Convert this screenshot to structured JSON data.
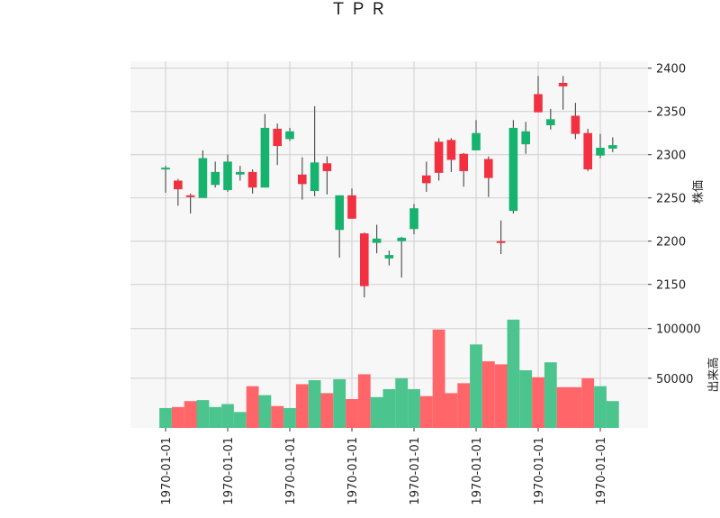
{
  "chart_data": {
    "type": "candlestick",
    "title": "ＴＰＲ",
    "colors": {
      "up": "#16b36e",
      "down": "#f2303f",
      "wick": "#555555",
      "vol_up": "#4bc48e",
      "vol_down": "#ff6569",
      "grid": "#cfcfcf",
      "panel_bg": "#f7f7f7"
    },
    "price_axis": {
      "label": "株価",
      "ylim": [
        2107,
        2408
      ],
      "ticks": [
        2150,
        2200,
        2250,
        2300,
        2350,
        2400
      ]
    },
    "volume_axis": {
      "label": "出来高",
      "ylim": [
        0,
        107000
      ],
      "ticks": [
        50000,
        100000
      ]
    },
    "x_tick_labels": [
      "1970-01-01",
      "1970-01-01",
      "1970-01-01",
      "1970-01-01",
      "1970-01-01",
      "1970-01-01",
      "1970-01-01",
      "1970-01-01"
    ],
    "candles": [
      {
        "open": 2283,
        "high": 2287,
        "low": 2256,
        "close": 2285,
        "volume": 20000
      },
      {
        "open": 2270,
        "high": 2272,
        "low": 2241,
        "close": 2260,
        "volume": 21000
      },
      {
        "open": 2253,
        "high": 2255,
        "low": 2232,
        "close": 2251,
        "volume": 27000
      },
      {
        "open": 2250,
        "high": 2305,
        "low": 2250,
        "close": 2296,
        "volume": 28000
      },
      {
        "open": 2265,
        "high": 2292,
        "low": 2262,
        "close": 2280,
        "volume": 21000
      },
      {
        "open": 2259,
        "high": 2300,
        "low": 2257,
        "close": 2292,
        "volume": 24000
      },
      {
        "open": 2277,
        "high": 2287,
        "low": 2270,
        "close": 2280,
        "volume": 16000
      },
      {
        "open": 2280,
        "high": 2283,
        "low": 2255,
        "close": 2262,
        "volume": 42000
      },
      {
        "open": 2262,
        "high": 2347,
        "low": 2262,
        "close": 2331,
        "volume": 33000
      },
      {
        "open": 2330,
        "high": 2336,
        "low": 2288,
        "close": 2310,
        "volume": 22000
      },
      {
        "open": 2318,
        "high": 2331,
        "low": 2316,
        "close": 2327,
        "volume": 20000
      },
      {
        "open": 2277,
        "high": 2297,
        "low": 2248,
        "close": 2266,
        "volume": 44000
      },
      {
        "open": 2258,
        "high": 2356,
        "low": 2252,
        "close": 2291,
        "volume": 48000
      },
      {
        "open": 2290,
        "high": 2298,
        "low": 2254,
        "close": 2281,
        "volume": 35000
      },
      {
        "open": 2213,
        "high": 2253,
        "low": 2181,
        "close": 2253,
        "volume": 49000
      },
      {
        "open": 2253,
        "high": 2261,
        "low": 2226,
        "close": 2226,
        "volume": 29000
      },
      {
        "open": 2209,
        "high": 2210,
        "low": 2135,
        "close": 2148,
        "volume": 54000
      },
      {
        "open": 2198,
        "high": 2219,
        "low": 2186,
        "close": 2203,
        "volume": 31000
      },
      {
        "open": 2180,
        "high": 2189,
        "low": 2172,
        "close": 2184,
        "volume": 39000
      },
      {
        "open": 2200,
        "high": 2205,
        "low": 2158,
        "close": 2204,
        "volume": 50000
      },
      {
        "open": 2214,
        "high": 2243,
        "low": 2208,
        "close": 2238,
        "volume": 39000
      },
      {
        "open": 2276,
        "high": 2292,
        "low": 2257,
        "close": 2267,
        "volume": 32000
      },
      {
        "open": 2315,
        "high": 2319,
        "low": 2270,
        "close": 2279,
        "volume": 99000
      },
      {
        "open": 2317,
        "high": 2319,
        "low": 2280,
        "close": 2294,
        "volume": 35000
      },
      {
        "open": 2301,
        "high": 2302,
        "low": 2263,
        "close": 2281,
        "volume": 45000
      },
      {
        "open": 2305,
        "high": 2340,
        "low": 2305,
        "close": 2325,
        "volume": 84000
      },
      {
        "open": 2295,
        "high": 2298,
        "low": 2251,
        "close": 2273,
        "volume": 67000
      },
      {
        "open": 2200,
        "high": 2224,
        "low": 2185,
        "close": 2199,
        "volume": 64000
      },
      {
        "open": 2235,
        "high": 2340,
        "low": 2232,
        "close": 2331,
        "volume": 109000
      },
      {
        "open": 2312,
        "high": 2338,
        "low": 2301,
        "close": 2327,
        "volume": 58000
      },
      {
        "open": 2370,
        "high": 2391,
        "low": 2349,
        "close": 2349,
        "volume": 51000
      },
      {
        "open": 2334,
        "high": 2353,
        "low": 2329,
        "close": 2341,
        "volume": 66000
      },
      {
        "open": 2383,
        "high": 2391,
        "low": 2352,
        "close": 2379,
        "volume": 41000
      },
      {
        "open": 2345,
        "high": 2360,
        "low": 2318,
        "close": 2324,
        "volume": 41000
      },
      {
        "open": 2325,
        "high": 2330,
        "low": 2281,
        "close": 2283,
        "volume": 50000
      },
      {
        "open": 2299,
        "high": 2324,
        "low": 2296,
        "close": 2308,
        "volume": 42000
      },
      {
        "open": 2307,
        "high": 2320,
        "low": 2303,
        "close": 2311,
        "volume": 27000
      }
    ]
  }
}
